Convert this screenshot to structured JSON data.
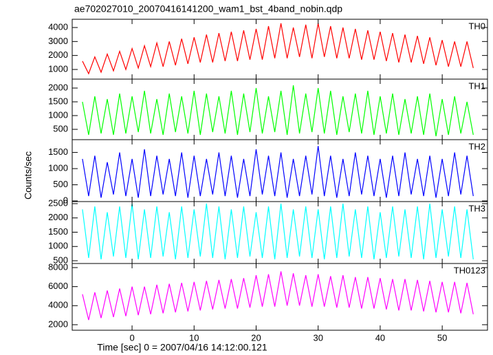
{
  "chart_data": {
    "type": "line",
    "title": "ae702027010_20070416141200_wam1_bst_4band_nobin.qdp",
    "x_label": "Time [sec] 0 = 2007/04/16 14:12:00.121",
    "y_label": "Counts/sec",
    "xlim": [
      -9.65,
      57.3
    ],
    "xticks": [
      0,
      10,
      20,
      30,
      40,
      50
    ],
    "x": [
      -8,
      -7,
      -6,
      -5,
      -4,
      -3,
      -2,
      -1,
      0,
      1,
      2,
      3,
      4,
      5,
      6,
      7,
      8,
      9,
      10,
      11,
      12,
      13,
      14,
      15,
      16,
      17,
      18,
      19,
      20,
      21,
      22,
      23,
      24,
      25,
      26,
      27,
      28,
      29,
      30,
      31,
      32,
      33,
      34,
      35,
      36,
      37,
      38,
      39,
      40,
      41,
      42,
      43,
      44,
      45,
      46,
      47,
      48,
      49,
      50,
      51,
      52,
      53,
      54,
      55
    ],
    "series": [
      {
        "name": "TH0",
        "color": "#ff0000",
        "ylim": [
          310,
          4590
        ],
        "yticks": [
          1000,
          2000,
          3000,
          4000
        ],
        "values": [
          1600,
          700,
          1900,
          800,
          2100,
          900,
          2300,
          1000,
          2500,
          1100,
          2700,
          1200,
          2900,
          1200,
          3000,
          1300,
          3200,
          1400,
          3300,
          1500,
          3500,
          1500,
          3600,
          1600,
          3700,
          1600,
          3800,
          1700,
          3900,
          1700,
          4100,
          1800,
          4300,
          1800,
          4000,
          1900,
          4200,
          1800,
          4300,
          1900,
          4100,
          1800,
          4000,
          1800,
          3900,
          1700,
          3800,
          1700,
          3700,
          1600,
          3600,
          1500,
          3500,
          1500,
          3400,
          1400,
          3300,
          1300,
          3100,
          1200,
          3000,
          1200,
          3000,
          1100
        ]
      },
      {
        "name": "TH1",
        "color": "#00ff00",
        "ylim": [
          125,
          2325
        ],
        "yticks": [
          500,
          1000,
          1500,
          2000
        ],
        "values": [
          1500,
          300,
          1700,
          350,
          1600,
          300,
          1800,
          350,
          1700,
          400,
          1900,
          350,
          1600,
          300,
          1800,
          400,
          1700,
          350,
          1900,
          300,
          1800,
          400,
          1700,
          350,
          1900,
          300,
          1800,
          400,
          2000,
          350,
          1700,
          400,
          1900,
          300,
          2100,
          350,
          1800,
          400,
          2000,
          350,
          1900,
          300,
          1700,
          400,
          1800,
          350,
          1900,
          300,
          1700,
          350,
          1800,
          300,
          1600,
          350,
          1700,
          300,
          1800,
          250,
          1600,
          300,
          1700,
          350,
          1500,
          300
        ]
      },
      {
        "name": "TH2",
        "color": "#0000ff",
        "ylim": [
          -20,
          1896
        ],
        "yticks": [
          0,
          500,
          1000,
          1500
        ],
        "values": [
          1300,
          150,
          1400,
          100,
          1200,
          200,
          1500,
          150,
          1300,
          100,
          1600,
          150,
          1400,
          200,
          1300,
          150,
          1500,
          100,
          1400,
          150,
          1300,
          200,
          1500,
          150,
          1400,
          100,
          1300,
          150,
          1600,
          200,
          1400,
          150,
          1500,
          100,
          1300,
          150,
          1400,
          200,
          1700,
          150,
          1400,
          100,
          1300,
          150,
          1500,
          200,
          1400,
          150,
          1300,
          100,
          1400,
          150,
          1500,
          200,
          1300,
          150,
          1400,
          100,
          1300,
          150,
          1500,
          200,
          1400,
          150
        ]
      },
      {
        "name": "TH3",
        "color": "#00ffff",
        "ylim": [
          404,
          2572
        ],
        "yticks": [
          500,
          1000,
          1500,
          2000,
          2500
        ],
        "values": [
          2300,
          600,
          2400,
          550,
          2200,
          650,
          2400,
          600,
          2500,
          550,
          2300,
          600,
          2400,
          650,
          2200,
          550,
          2400,
          600,
          2300,
          650,
          2500,
          600,
          2400,
          550,
          2300,
          600,
          2400,
          650,
          2200,
          600,
          2400,
          550,
          2500,
          600,
          2300,
          650,
          2400,
          600,
          2300,
          550,
          2400,
          600,
          2500,
          650,
          2300,
          600,
          2400,
          550,
          2200,
          600,
          2400,
          650,
          2300,
          600,
          2400,
          550,
          2500,
          600,
          2300,
          650,
          2400,
          600,
          2300,
          550
        ]
      },
      {
        "name": "TH0123",
        "color": "#ff00ff",
        "ylim": [
          1420,
          8430
        ],
        "yticks": [
          2000,
          4000,
          6000,
          8000
        ],
        "values": [
          5200,
          2500,
          5400,
          2700,
          5600,
          2800,
          5800,
          2900,
          6000,
          3000,
          6000,
          3100,
          6200,
          3200,
          6300,
          3300,
          6400,
          3400,
          6500,
          3500,
          6600,
          3600,
          6700,
          3700,
          6800,
          3700,
          6900,
          3800,
          7200,
          3900,
          7300,
          3900,
          7600,
          4000,
          7400,
          4000,
          7200,
          3900,
          7300,
          3900,
          7100,
          3800,
          7200,
          3800,
          7000,
          3700,
          7000,
          3700,
          6900,
          3600,
          6800,
          3500,
          6800,
          3500,
          6700,
          3400,
          6600,
          3300,
          6500,
          3300,
          6500,
          3200,
          6400,
          3100
        ]
      }
    ]
  }
}
